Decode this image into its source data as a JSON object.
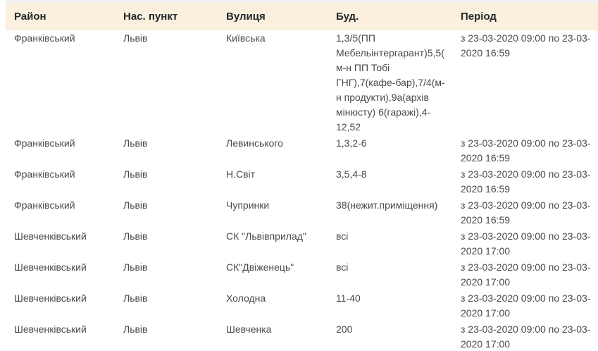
{
  "table": {
    "columns": [
      {
        "key": "district",
        "label": "Район"
      },
      {
        "key": "settlement",
        "label": "Нас. пункт"
      },
      {
        "key": "street",
        "label": "Вулиця"
      },
      {
        "key": "building",
        "label": "Буд."
      },
      {
        "key": "period",
        "label": "Період"
      }
    ],
    "rows": [
      {
        "district": "Франківський",
        "settlement": "Львів",
        "street": "Київська",
        "building": "1,3/5(ПП Мебельінтергарант)5,5(м-н ПП Тобі ГНГ),7(кафе-бар),7/4(м-н продукти),9а(архів мінюсту) 6(гаражі),4-12,52",
        "period": "з 23-03-2020 09:00 по 23-03-2020 16:59"
      },
      {
        "district": "Франківський",
        "settlement": "Львів",
        "street": "Левинського",
        "building": "1,3,2-6",
        "period": "з 23-03-2020 09:00 по 23-03-2020 16:59"
      },
      {
        "district": "Франківський",
        "settlement": "Львів",
        "street": "Н.Світ",
        "building": "3,5,4-8",
        "period": "з 23-03-2020 09:00 по 23-03-2020 16:59"
      },
      {
        "district": "Франківський",
        "settlement": "Львів",
        "street": "Чупринки",
        "building": "38(нежит.приміщення)",
        "period": "з 23-03-2020 09:00 по 23-03-2020 16:59"
      },
      {
        "district": "Шевченківський",
        "settlement": "Львів",
        "street": "СК \"Львівприлад\"",
        "building": "всі",
        "period": "з 23-03-2020 09:00 по 23-03-2020 17:00"
      },
      {
        "district": "Шевченківський",
        "settlement": "Львів",
        "street": "СК\"Двіженець\"",
        "building": "всі",
        "period": "з 23-03-2020 09:00 по 23-03-2020 17:00"
      },
      {
        "district": "Шевченківський",
        "settlement": "Львів",
        "street": "Холодна",
        "building": "11-40",
        "period": "з 23-03-2020 09:00 по 23-03-2020 17:00"
      },
      {
        "district": "Шевченківський",
        "settlement": "Львів",
        "street": "Шевченка",
        "building": "200",
        "period": "з 23-03-2020 09:00 по 23-03-2020 17:00"
      }
    ]
  },
  "colors": {
    "header_bg": "#fbf0dd",
    "header_text": "#23282d",
    "body_text": "#4a4a4a",
    "strip": "#f3f3f3"
  }
}
